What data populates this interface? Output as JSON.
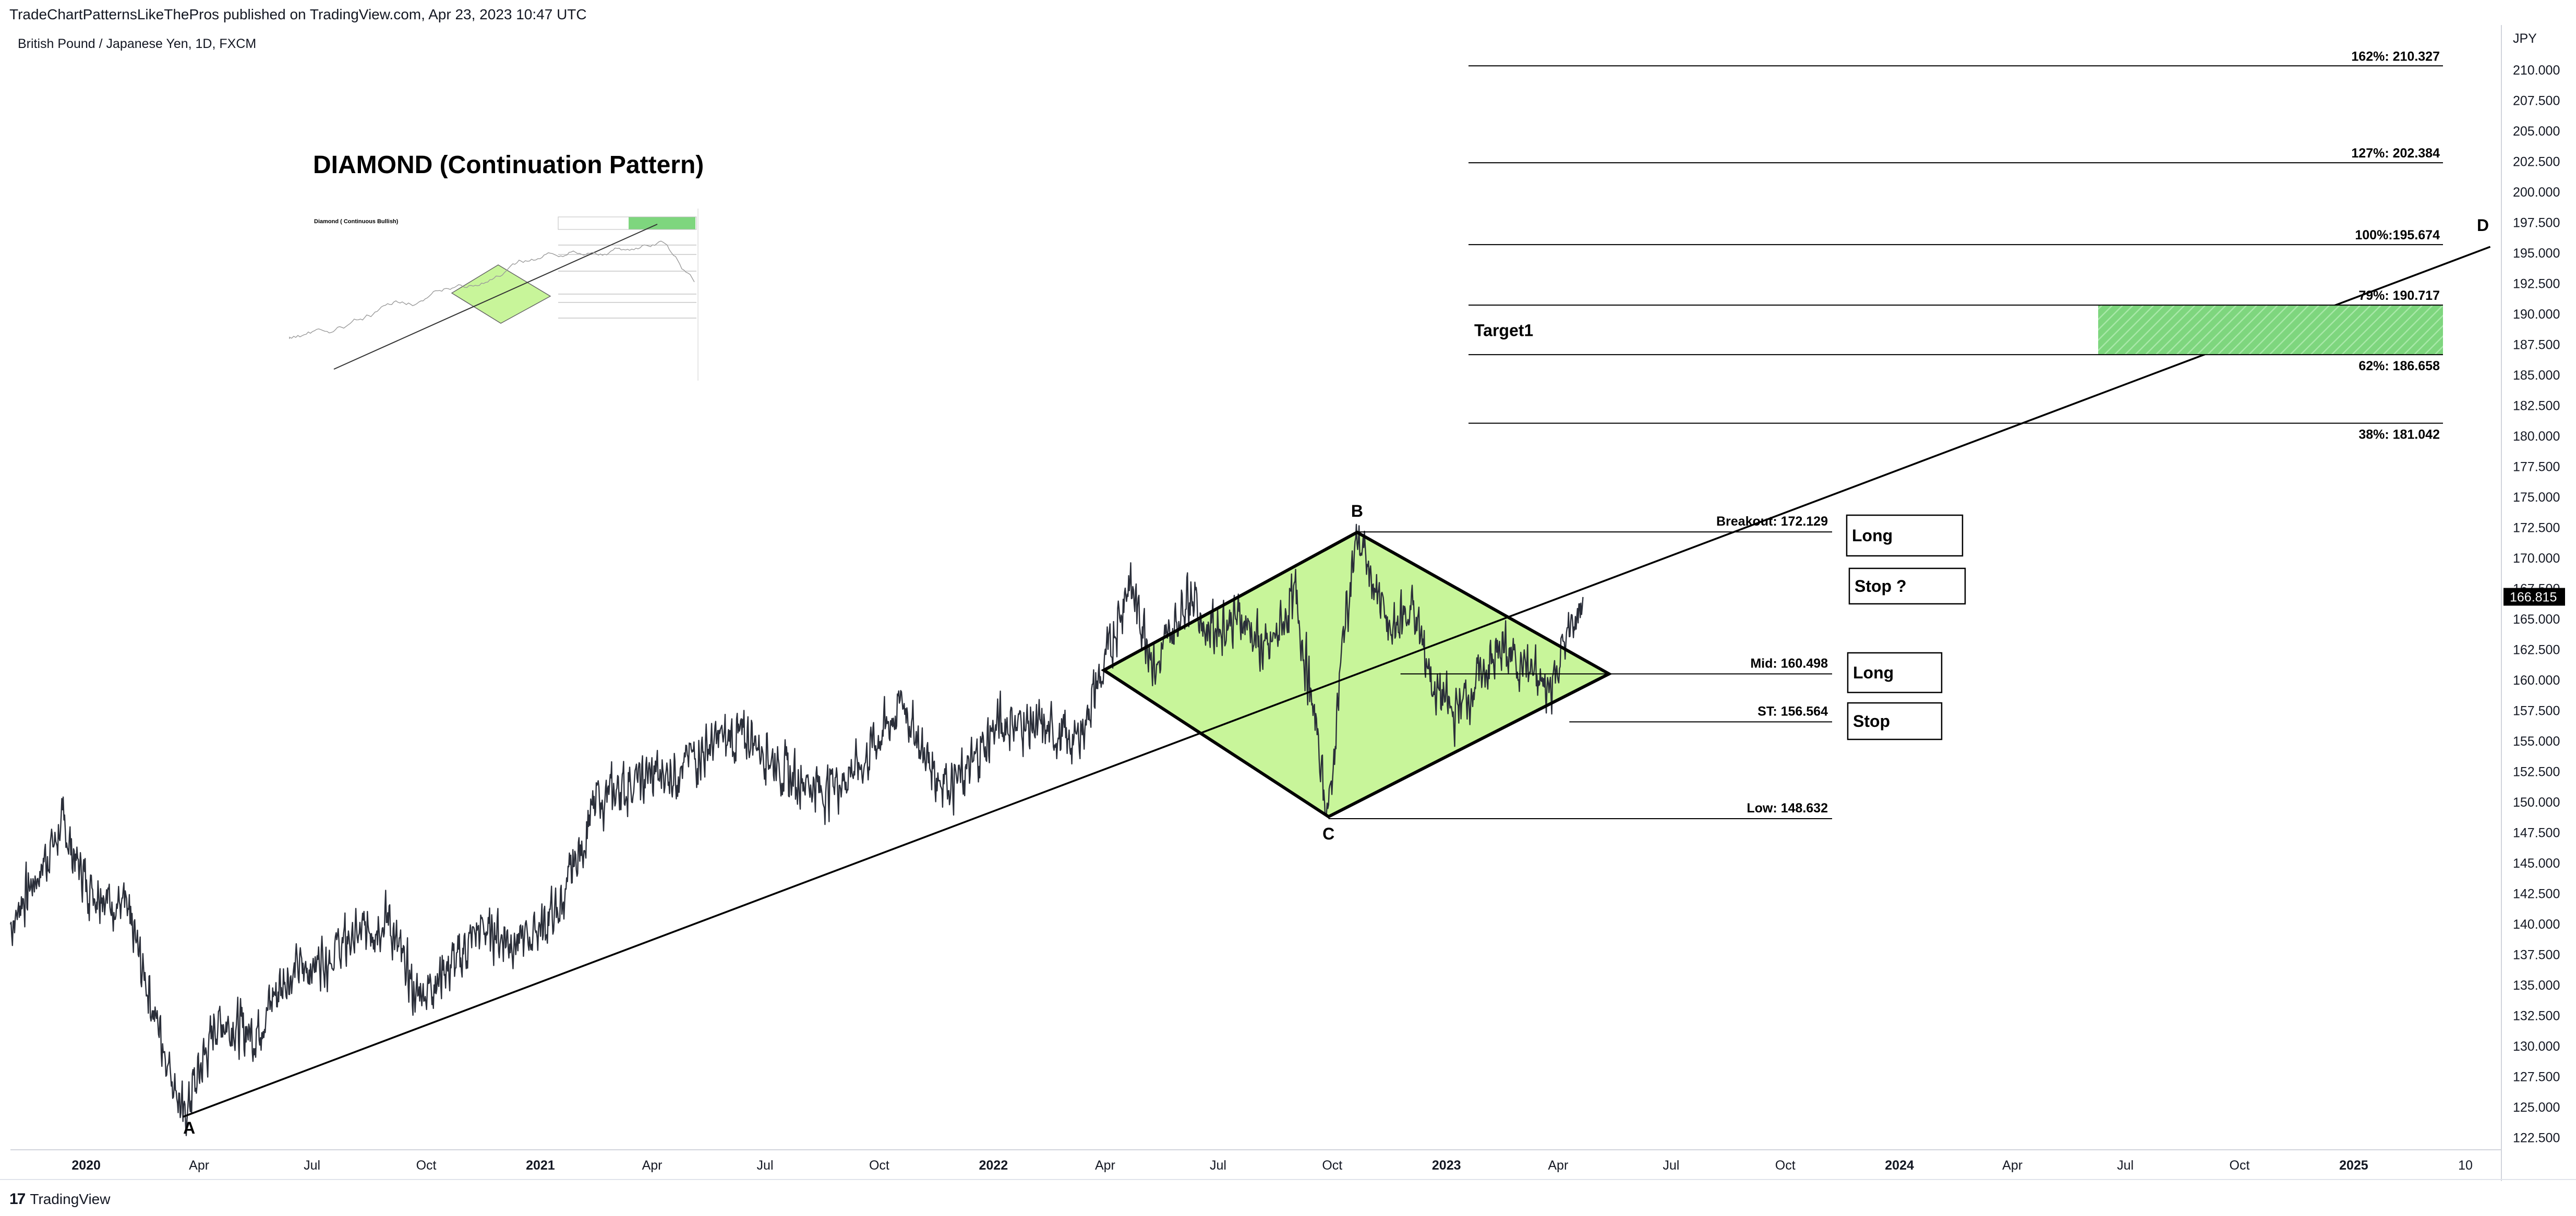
{
  "header": {
    "publish_line": "TradeChartPatternsLikeThePros published on TradingView.com, Apr 23, 2023 10:47 UTC",
    "symbol_line": "British Pound / Japanese Yen, 1D, FXCM"
  },
  "footer": {
    "logo_mark": "17",
    "logo_text": "TradingView"
  },
  "colors": {
    "price": "#2a2e39",
    "diamond_fill": "#c8f59a",
    "target_zone": "#7ed67e",
    "line": "#000000",
    "axis_text": "#131722",
    "last_price_bg": "#000000"
  },
  "annotations": {
    "title": "DIAMOND (Continuation Pattern)",
    "inset_caption": "Diamond ( Continuous Bullish)",
    "point_labels": [
      "A",
      "B",
      "C",
      "D"
    ],
    "target_label": "Target1",
    "boxes": [
      "Long",
      "Stop ?",
      "Long",
      "Stop"
    ]
  },
  "chart_data": {
    "type": "line",
    "title": "British Pound / Japanese Yen, 1D, FXCM",
    "xlabel": "",
    "ylabel": "JPY",
    "x_ticks": [
      "2020",
      "Apr",
      "Jul",
      "Oct",
      "2021",
      "Apr",
      "Jul",
      "Oct",
      "2022",
      "Apr",
      "Jul",
      "Oct",
      "2023",
      "Apr",
      "Jul",
      "Oct",
      "2024",
      "Apr",
      "Jul",
      "Oct",
      "2025",
      "10"
    ],
    "y_ticks": [
      122.5,
      125,
      127.5,
      130,
      132.5,
      135,
      137.5,
      140,
      142.5,
      145,
      147.5,
      150,
      152.5,
      155,
      157.5,
      160,
      162.5,
      165,
      167.5,
      170,
      172.5,
      175,
      177.5,
      180,
      182.5,
      185,
      187.5,
      190,
      192.5,
      195,
      197.5,
      200,
      202.5,
      205,
      207.5,
      210
    ],
    "ylim": [
      121.5,
      213.5
    ],
    "xlim": [
      "2019-11-01",
      "2025-04-30"
    ],
    "last_price": "166.815",
    "series": [
      {
        "x": [
          "2019-11-01",
          "2019-12-13",
          "2020-01-03",
          "2020-02-01",
          "2020-03-19",
          "2020-04-15",
          "2020-05-15",
          "2020-06-08",
          "2020-07-15",
          "2020-08-31",
          "2020-09-22",
          "2020-10-15",
          "2020-11-15",
          "2020-12-15",
          "2021-01-15",
          "2021-02-15",
          "2021-03-15",
          "2021-04-20",
          "2021-05-25",
          "2021-06-20",
          "2021-07-20",
          "2021-08-20",
          "2021-09-15",
          "2021-10-20",
          "2021-11-15",
          "2021-12-05",
          "2022-01-05",
          "2022-02-15",
          "2022-03-08",
          "2022-03-31",
          "2022-04-20",
          "2022-05-12",
          "2022-06-08",
          "2022-06-22",
          "2022-07-20",
          "2022-08-10",
          "2022-09-01",
          "2022-09-28",
          "2022-10-10",
          "2022-10-21",
          "2022-11-15",
          "2022-12-05",
          "2022-12-20",
          "2023-01-06",
          "2023-01-25",
          "2023-02-15",
          "2023-03-08",
          "2023-03-23",
          "2023-04-10",
          "2023-04-21"
        ],
        "y": [
          140,
          148,
          143,
          141.5,
          124.2,
          132,
          131,
          135.5,
          137.5,
          140.5,
          134,
          136,
          139.5,
          138.5,
          141,
          150,
          151.5,
          152.5,
          155,
          155.5,
          152,
          151,
          153,
          158,
          152,
          151.5,
          156.5,
          156,
          154.8,
          161,
          168,
          161,
          167.5,
          164,
          165,
          162,
          167,
          148.8,
          164,
          172.1,
          164,
          166,
          160,
          157,
          160,
          162.5,
          161,
          159,
          164,
          166.8
        ]
      }
    ],
    "pattern_points": [
      {
        "label": "A",
        "x": "2020-03-19",
        "y": 124.2
      },
      {
        "label": "B",
        "x": "2022-10-21",
        "y": 172.1
      },
      {
        "label": "C",
        "x": "2022-09-28",
        "y": 148.8
      },
      {
        "label": "D",
        "x": "2025-04-21",
        "y": 195.5
      }
    ],
    "levels": [
      {
        "label": "Breakout: 172.129",
        "value": 172.129
      },
      {
        "label": "Mid: 160.498",
        "value": 160.498
      },
      {
        "label": "ST: 156.564",
        "value": 156.564
      },
      {
        "label": "Low: 148.632",
        "value": 148.632
      }
    ],
    "fib_levels": [
      {
        "label": "162%: 210.327",
        "value": 210.327
      },
      {
        "label": "127%: 202.384",
        "value": 202.384
      },
      {
        "label": "100%:195.674",
        "value": 195.674
      },
      {
        "label": "79%: 190.717",
        "value": 190.717
      },
      {
        "label": "62%: 186.658",
        "value": 186.658
      },
      {
        "label": "38%: 181.042",
        "value": 181.042
      }
    ],
    "target_zone": [
      186.658,
      190.717
    ]
  }
}
